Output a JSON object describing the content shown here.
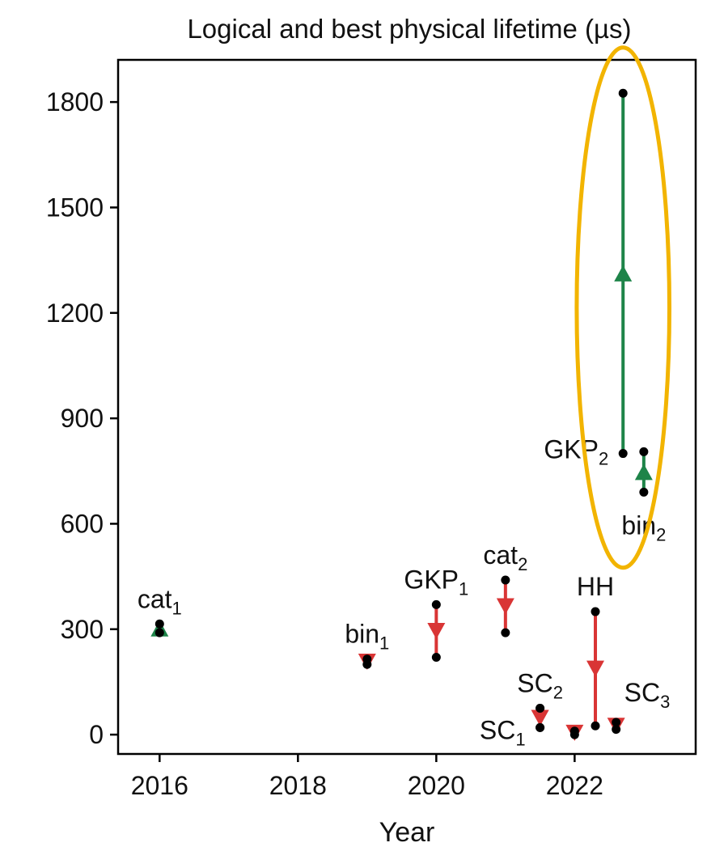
{
  "chart_data": {
    "type": "scatter",
    "title": "Logical and best physical lifetime (µs)",
    "xlabel": "Year",
    "ylabel": "",
    "xlim": [
      2015.4,
      2023.75
    ],
    "ylim": [
      -55,
      1920
    ],
    "xticks": [
      2016,
      2018,
      2020,
      2022
    ],
    "yticks": [
      0,
      300,
      600,
      900,
      1200,
      1500,
      1800
    ],
    "grid": false,
    "legend": "none",
    "colors": {
      "improve": "#1e8449",
      "worse": "#d93535",
      "point": "#000000",
      "highlight": "#f2b400"
    },
    "series": [
      {
        "label": "cat",
        "sub": "1",
        "x": 2016.0,
        "y_start": 290,
        "y_end": 315,
        "direction": "up",
        "label_pos": "above"
      },
      {
        "label": "bin",
        "sub": "1",
        "x": 2019.0,
        "y_start": 215,
        "y_end": 200,
        "direction": "down",
        "label_pos": "above"
      },
      {
        "label": "GKP",
        "sub": "1",
        "x": 2020.0,
        "y_start": 370,
        "y_end": 220,
        "direction": "down",
        "label_pos": "above"
      },
      {
        "label": "cat",
        "sub": "2",
        "x": 2021.0,
        "y_start": 440,
        "y_end": 290,
        "direction": "down",
        "label_pos": "above"
      },
      {
        "label": "SC",
        "sub": "2",
        "x": 2021.5,
        "y_start": 75,
        "y_end": 20,
        "direction": "down",
        "label_pos": "above"
      },
      {
        "label": "SC",
        "sub": "1",
        "x": 2021.5,
        "y_start": 75,
        "y_end": 20,
        "direction": "down",
        "label_pos": "left"
      },
      {
        "label": "",
        "sub": "",
        "x": 2022.0,
        "y_start": 10,
        "y_end": 0,
        "direction": "down",
        "label_pos": "none"
      },
      {
        "label": "HH",
        "sub": "",
        "x": 2022.3,
        "y_start": 350,
        "y_end": 25,
        "direction": "down",
        "label_pos": "above"
      },
      {
        "label": "SC",
        "sub": "3",
        "x": 2022.6,
        "y_start": 35,
        "y_end": 15,
        "direction": "down",
        "label_pos": "above-right"
      },
      {
        "label": "GKP",
        "sub": "2",
        "x": 2022.7,
        "y_start": 800,
        "y_end": 1825,
        "direction": "up",
        "label_pos": "left"
      },
      {
        "label": "bin",
        "sub": "2",
        "x": 2023.0,
        "y_start": 690,
        "y_end": 805,
        "direction": "up",
        "label_pos": "below"
      }
    ],
    "annotations": [
      {
        "type": "ellipse",
        "center_x": 2022.7,
        "center_y": 1215,
        "half_width_years": 0.67,
        "half_height": 740,
        "note": "highlight"
      }
    ]
  }
}
